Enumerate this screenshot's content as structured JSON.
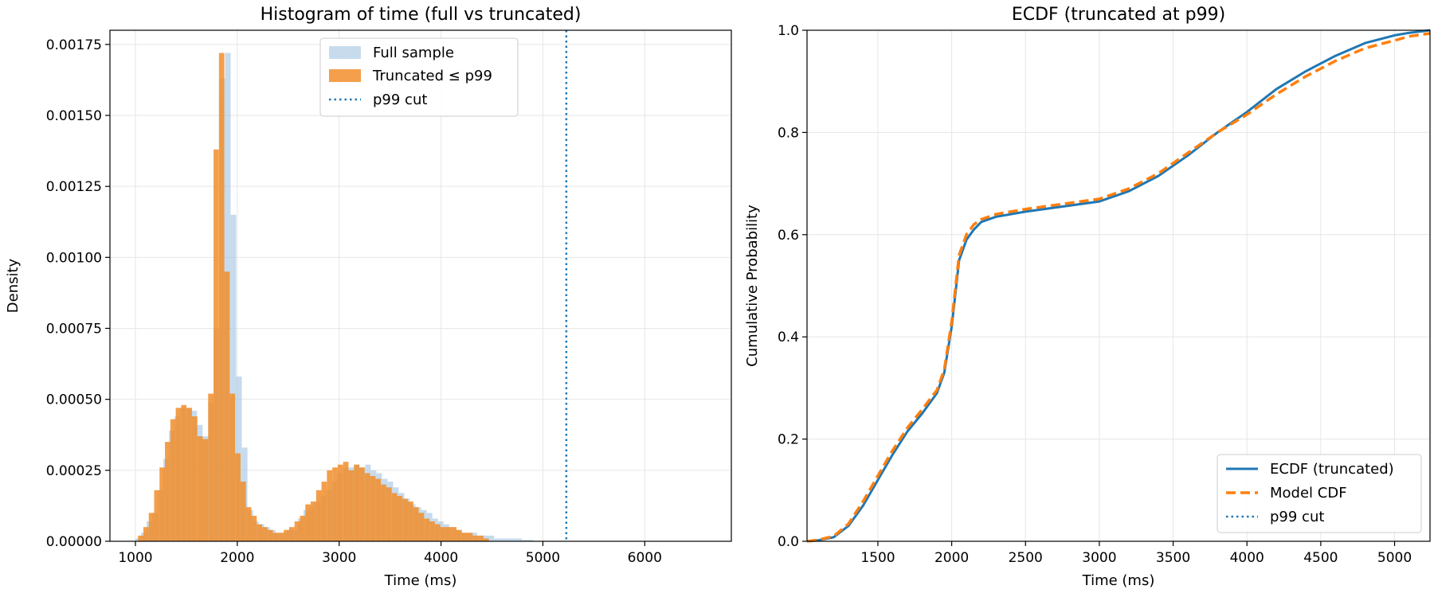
{
  "chart_data": [
    {
      "type": "histogram",
      "title": "Histogram of time (full vs truncated)",
      "xlabel": "Time (ms)",
      "ylabel": "Density",
      "xlim": [
        750,
        6850
      ],
      "ylim": [
        0,
        0.0018
      ],
      "x_ticks": [
        1000,
        2000,
        3000,
        4000,
        5000,
        6000
      ],
      "y_ticks": [
        "0.00000",
        "0.00025",
        "0.00050",
        "0.00075",
        "0.00100",
        "0.00125",
        "0.00150",
        "0.00175"
      ],
      "grid": true,
      "legend_position": "top-center",
      "legend": [
        "Full sample",
        "Truncated ≤ p99",
        "p99 cut"
      ],
      "p99_cut": 5230,
      "series": [
        {
          "name": "Full sample",
          "color": "#a9c8e4",
          "bin_start": 1000,
          "bin_width": 55,
          "values": [
            1e-05,
            3e-05,
            7e-05,
            0.0001,
            0.00018,
            0.00029,
            0.00039,
            0.00044,
            0.00047,
            0.00047,
            0.00046,
            0.00041,
            0.00037,
            0.00049,
            0.00075,
            0.00163,
            0.00172,
            0.00115,
            0.00058,
            0.00033,
            0.00011,
            7e-05,
            6e-05,
            5e-05,
            4e-05,
            3e-05,
            3e-05,
            4e-05,
            4e-05,
            8e-05,
            0.00011,
            0.00012,
            0.00014,
            0.00016,
            0.00018,
            0.00021,
            0.00024,
            0.00026,
            0.00026,
            0.00027,
            0.00026,
            0.00027,
            0.00025,
            0.00024,
            0.00022,
            0.00021,
            0.00019,
            0.00017,
            0.00015,
            0.00013,
            0.00012,
            0.00011,
            0.0001,
            8e-05,
            7e-05,
            6e-05,
            5e-05,
            4e-05,
            3e-05,
            3e-05,
            3e-05,
            2e-05,
            2e-05,
            2e-05,
            1e-05,
            1e-05,
            1e-05,
            1e-05,
            1e-05,
            5e-06,
            5e-06
          ]
        },
        {
          "name": "Truncated ≤ p99",
          "color": "#f28e2b",
          "bin_start": 1025,
          "bin_width": 53,
          "values": [
            2e-05,
            5e-05,
            0.0001,
            0.00018,
            0.00026,
            0.00035,
            0.00043,
            0.00047,
            0.00048,
            0.00047,
            0.00044,
            0.00037,
            0.00036,
            0.00052,
            0.00138,
            0.00172,
            0.00095,
            0.00052,
            0.00031,
            0.00021,
            0.00012,
            9e-05,
            6e-05,
            5e-05,
            4e-05,
            3e-05,
            3e-05,
            4e-05,
            5e-05,
            7e-05,
            9e-05,
            0.00013,
            0.00014,
            0.00018,
            0.00021,
            0.00025,
            0.00026,
            0.00027,
            0.00028,
            0.00025,
            0.00027,
            0.00026,
            0.00024,
            0.00023,
            0.00022,
            0.0002,
            0.00019,
            0.00017,
            0.00016,
            0.00015,
            0.00014,
            0.00012,
            0.0001,
            8e-05,
            7e-05,
            6e-05,
            5e-05,
            5e-05,
            5e-05,
            4e-05,
            3e-05,
            3e-05,
            2e-05,
            2e-05,
            1e-05
          ]
        }
      ]
    },
    {
      "type": "line",
      "title": "ECDF (truncated at p99)",
      "xlabel": "Time (ms)",
      "ylabel": "Cumulative Probability",
      "xlim": [
        1020,
        5240
      ],
      "ylim": [
        0,
        1.0
      ],
      "x_ticks": [
        1500,
        2000,
        2500,
        3000,
        3500,
        4000,
        4500,
        5000
      ],
      "y_ticks": [
        "0.0",
        "0.2",
        "0.4",
        "0.6",
        "0.8",
        "1.0"
      ],
      "grid": true,
      "legend_position": "bottom-right",
      "legend": [
        "ECDF (truncated)",
        "Model CDF",
        "p99 cut"
      ],
      "series": [
        {
          "name": "ECDF (truncated)",
          "color": "#1f77b4",
          "style": "solid",
          "x": [
            1020,
            1100,
            1200,
            1300,
            1400,
            1500,
            1600,
            1700,
            1800,
            1900,
            1950,
            2000,
            2050,
            2100,
            2150,
            2200,
            2300,
            2500,
            2750,
            3000,
            3200,
            3400,
            3600,
            3800,
            4000,
            4200,
            4400,
            4600,
            4800,
            5000,
            5100,
            5240
          ],
          "y": [
            0,
            0.002,
            0.008,
            0.03,
            0.07,
            0.12,
            0.17,
            0.215,
            0.25,
            0.29,
            0.33,
            0.42,
            0.55,
            0.59,
            0.61,
            0.625,
            0.635,
            0.645,
            0.655,
            0.665,
            0.685,
            0.715,
            0.755,
            0.8,
            0.84,
            0.885,
            0.92,
            0.95,
            0.975,
            0.99,
            0.995,
            1.0
          ]
        },
        {
          "name": "Model CDF",
          "color": "#ff7f0e",
          "style": "dashed",
          "x": [
            1020,
            1100,
            1200,
            1300,
            1400,
            1500,
            1600,
            1700,
            1800,
            1900,
            1950,
            2000,
            2050,
            2100,
            2150,
            2200,
            2300,
            2500,
            2750,
            3000,
            3200,
            3400,
            3600,
            3800,
            4000,
            4200,
            4400,
            4600,
            4800,
            5000,
            5100,
            5240
          ],
          "y": [
            0,
            0.003,
            0.01,
            0.034,
            0.078,
            0.128,
            0.178,
            0.222,
            0.258,
            0.296,
            0.336,
            0.43,
            0.56,
            0.6,
            0.62,
            0.63,
            0.64,
            0.65,
            0.66,
            0.67,
            0.69,
            0.72,
            0.76,
            0.8,
            0.835,
            0.875,
            0.91,
            0.94,
            0.965,
            0.98,
            0.988,
            0.994
          ]
        }
      ]
    }
  ]
}
